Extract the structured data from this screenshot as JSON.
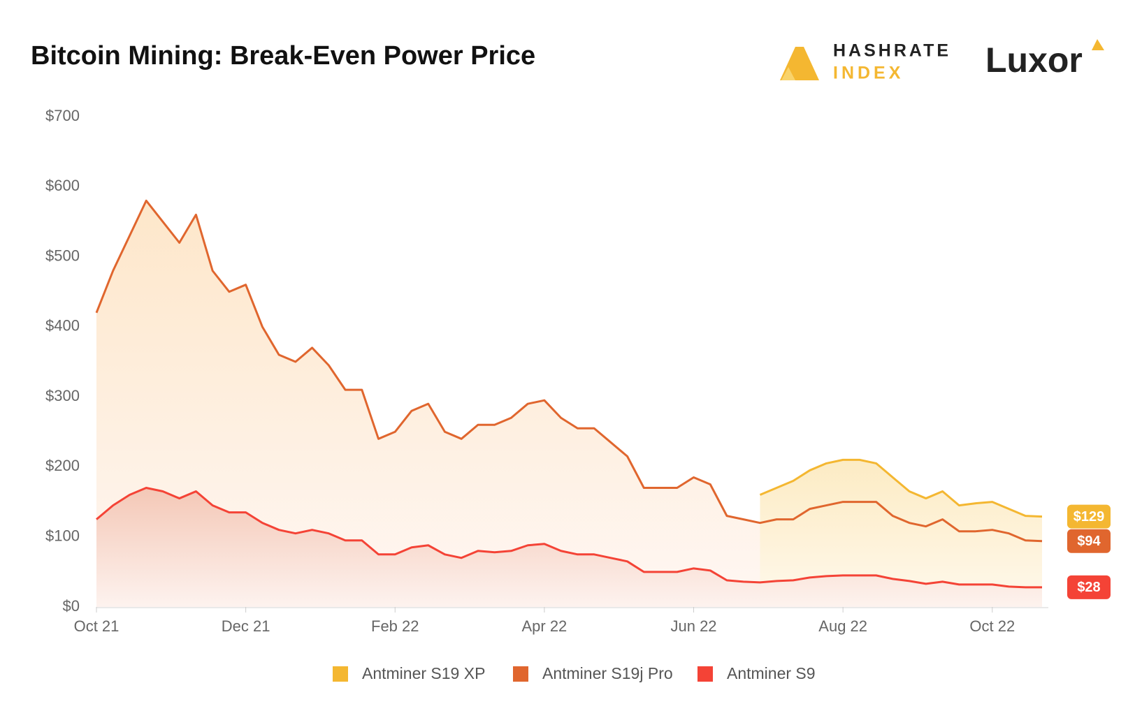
{
  "branding": {
    "hashrate": "HASHRATE",
    "index": "INDEX",
    "luxor": "Luxor"
  },
  "chart_data": {
    "type": "line",
    "title": "Bitcoin Mining: Break-Even Power Price",
    "categories": [
      "Oct 21",
      null,
      null,
      null,
      null,
      null,
      null,
      null,
      null,
      "Dec 21",
      null,
      null,
      null,
      null,
      null,
      null,
      null,
      null,
      "Feb 22",
      null,
      null,
      null,
      null,
      null,
      null,
      null,
      null,
      "Apr 22",
      null,
      null,
      null,
      null,
      null,
      null,
      null,
      null,
      "Jun 22",
      null,
      null,
      null,
      null,
      null,
      null,
      null,
      null,
      "Aug 22",
      null,
      null,
      null,
      null,
      null,
      null,
      null,
      null,
      "Oct 22",
      null,
      null,
      null
    ],
    "series": [
      {
        "name": "Antminer S19 XP",
        "color": "#f4b731",
        "values": [
          null,
          null,
          null,
          null,
          null,
          null,
          null,
          null,
          null,
          null,
          null,
          null,
          null,
          null,
          null,
          null,
          null,
          null,
          null,
          null,
          null,
          null,
          null,
          null,
          null,
          null,
          null,
          null,
          null,
          null,
          null,
          null,
          null,
          null,
          null,
          null,
          null,
          null,
          null,
          null,
          160,
          170,
          180,
          195,
          205,
          210,
          210,
          205,
          185,
          165,
          155,
          165,
          145,
          148,
          150,
          140,
          130,
          129
        ],
        "value_labels": [
          null,
          null,
          null,
          null,
          null,
          null,
          null,
          null,
          null,
          null,
          null,
          null,
          null,
          null,
          null,
          null,
          null,
          null,
          null,
          null,
          null,
          null,
          null,
          null,
          null,
          null,
          null,
          null,
          null,
          null,
          null,
          null,
          null,
          null,
          null,
          null,
          null,
          null,
          null,
          null,
          null,
          null,
          null,
          null,
          null,
          null,
          null,
          null,
          null,
          null,
          null,
          null,
          null,
          null,
          null,
          null,
          null,
          "$129"
        ]
      },
      {
        "name": "Antminer S19j Pro",
        "color": "#e0662e",
        "values": [
          420,
          480,
          530,
          580,
          550,
          520,
          560,
          480,
          450,
          460,
          400,
          360,
          350,
          370,
          345,
          310,
          310,
          240,
          250,
          280,
          290,
          250,
          240,
          260,
          260,
          270,
          290,
          295,
          270,
          255,
          255,
          235,
          215,
          170,
          170,
          170,
          185,
          175,
          130,
          125,
          120,
          125,
          125,
          140,
          145,
          150,
          150,
          150,
          130,
          120,
          115,
          125,
          108,
          108,
          110,
          105,
          95,
          94
        ],
        "value_labels": [
          null,
          null,
          null,
          null,
          null,
          null,
          null,
          null,
          null,
          null,
          null,
          null,
          null,
          null,
          null,
          null,
          null,
          null,
          null,
          null,
          null,
          null,
          null,
          null,
          null,
          null,
          null,
          null,
          null,
          null,
          null,
          null,
          null,
          null,
          null,
          null,
          null,
          null,
          null,
          null,
          null,
          null,
          null,
          null,
          null,
          null,
          null,
          null,
          null,
          null,
          null,
          null,
          null,
          null,
          null,
          null,
          null,
          "$94"
        ]
      },
      {
        "name": "Antminer S9",
        "color": "#f44336",
        "values": [
          125,
          145,
          160,
          170,
          165,
          155,
          165,
          145,
          135,
          135,
          120,
          110,
          105,
          110,
          105,
          95,
          95,
          75,
          75,
          85,
          88,
          75,
          70,
          80,
          78,
          80,
          88,
          90,
          80,
          75,
          75,
          70,
          65,
          50,
          50,
          50,
          55,
          52,
          38,
          36,
          35,
          37,
          38,
          42,
          44,
          45,
          45,
          45,
          40,
          37,
          33,
          36,
          32,
          32,
          32,
          29,
          28,
          28
        ],
        "value_labels": [
          null,
          null,
          null,
          null,
          null,
          null,
          null,
          null,
          null,
          null,
          null,
          null,
          null,
          null,
          null,
          null,
          null,
          null,
          null,
          null,
          null,
          null,
          null,
          null,
          null,
          null,
          null,
          null,
          null,
          null,
          null,
          null,
          null,
          null,
          null,
          null,
          null,
          null,
          null,
          null,
          null,
          null,
          null,
          null,
          null,
          null,
          null,
          null,
          null,
          null,
          null,
          null,
          null,
          null,
          null,
          null,
          null,
          "$28"
        ]
      }
    ],
    "ylim": [
      0,
      700
    ],
    "yticks": [
      {
        "value": 0,
        "label": "$0"
      },
      {
        "value": 100,
        "label": "$100"
      },
      {
        "value": 200,
        "label": "$200"
      },
      {
        "value": 300,
        "label": "$300"
      },
      {
        "value": 400,
        "label": "$400"
      },
      {
        "value": 500,
        "label": "$500"
      },
      {
        "value": 600,
        "label": "$600"
      },
      {
        "value": 700,
        "label": "$700"
      }
    ],
    "grid": false,
    "legend": "bottom"
  }
}
